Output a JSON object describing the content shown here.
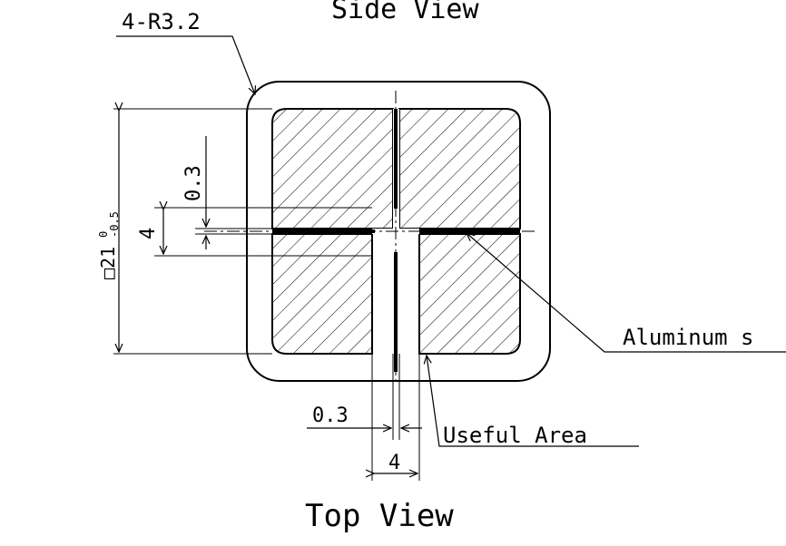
{
  "diagram": {
    "side_view_title": "Side View",
    "top_view_title": "Top View",
    "corner_radius_label": "4-R3.2",
    "outer_square_label": "□21",
    "outer_square_tolerance_upper": "0",
    "outer_square_tolerance_lower": "-0.5",
    "strip_thickness_vertical_label": "0.3",
    "gap_vertical_label": "4",
    "strip_thickness_horizontal_label": "0.3",
    "gap_horizontal_label": "4",
    "aluminum_label": "Aluminum s",
    "useful_area_label": "Useful Area"
  }
}
